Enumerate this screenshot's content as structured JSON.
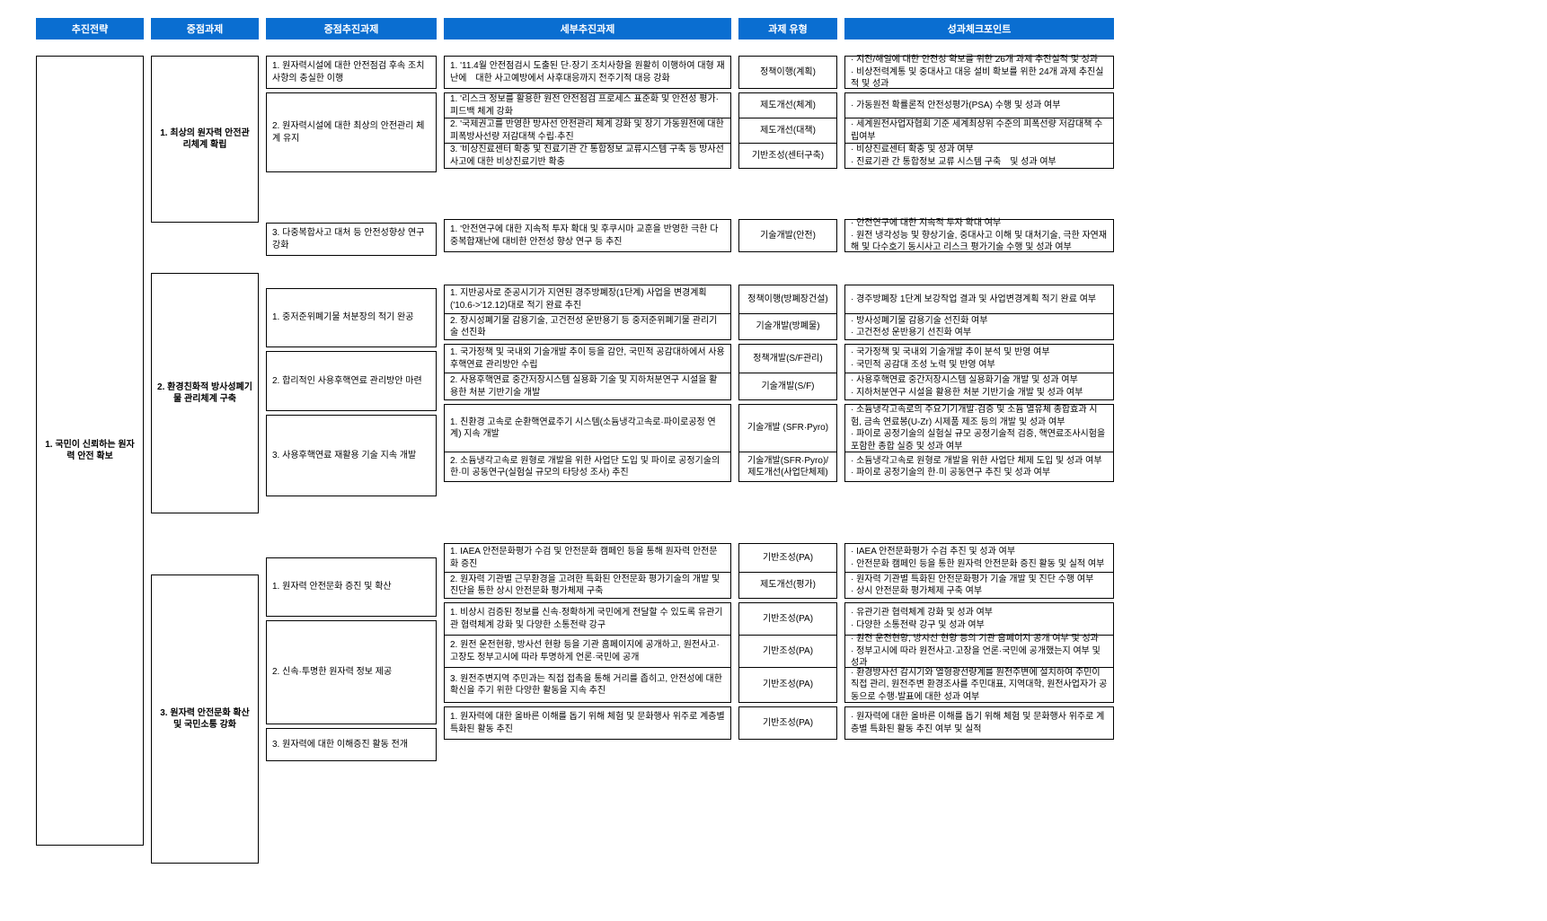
{
  "headers": {
    "strategy": "추진전략",
    "major": "중점과제",
    "focus": "중점추진과제",
    "detail": "세부추진과제",
    "type": "과제 유형",
    "check": "성과체크포인트"
  },
  "strategy": {
    "label": "1. 국민이 신뢰하는 원자력 안전 확보"
  },
  "majors": [
    {
      "label": "1. 최상의 원자력 안전관리체계 확립"
    },
    {
      "label": "2. 환경친화적 방사성폐기물 관리체계 구축"
    },
    {
      "label": "3. 원자력 안전문화 확산 및 국민소통 강화"
    }
  ],
  "focus": [
    {
      "label": "1. 원자력시설에 대한 안전점검 후속 조치사항의 충실한 이행"
    },
    {
      "label": "2. 원자력시설에 대한 최상의 안전관리 체계 유지"
    },
    {
      "label": "3. 다중복합사고 대처 등 안전성향상 연구 강화"
    },
    {
      "label": "1. 중저준위폐기물 처분장의 적기 완공"
    },
    {
      "label": "2. 합리적인 사용후핵연료 관리방안 마련"
    },
    {
      "label": "3. 사용후핵연료 재활용 기술 지속 개발"
    },
    {
      "label": "1. 원자력 안전문화 증진 및 확산"
    },
    {
      "label": "2. 신속·투명한 원자력 정보 제공"
    },
    {
      "label": "3. 원자력에 대한 이해증진 활동 전개"
    }
  ],
  "detail": [
    "1. '11.4월 안전점검시 도출된 단·장기 조치사항을 원활히 이행하여 대형 재난에　대한 사고예방에서 사후대응까지 전주기적 대응 강화",
    "1. '리스크 정보를 활용한 원전 안전점검 프로세스 표준화 및 안전성 평가·피드백 체계 강화",
    "2. '국제권고를 반영한 방사선 안전관리 체계 강화 및 장기 가동원전에 대한 피폭방사선량 저감대책 수립·추진",
    "3. '비상진료센터 확충 및 진료기관 간 통합정보 교류시스템 구축 등 방사선사고에 대한 비상진료기반 확충",
    "1. '안전연구에 대한 지속적 투자 확대 및 후쿠시마 교훈을 반영한 극한 다중복합재난에 대비한 안전성 향상 연구 등 추진",
    "1. 지반공사로 준공시기가 지연된 경주방폐장(1단계) 사업을 변경계획('10.6->'12.12)대로 적기 완료 추진",
    "2. 장시성폐기물 감용기술, 고건전성 운반용기 등 중저준위폐기물 관리기술 선진화",
    "1. 국가정책 및 국내외 기술개발 추이 등을 감안, 국민적 공감대하에서 사용후핵연료 관리방안 수립",
    "2. 사용후핵연료 중간저장시스템 실용화 기술 및 지하처분연구 시설을 활용한 처분 기반기술 개발",
    "1. 친환경 고속로 순환핵연료주기 시스템(소듐냉각고속로·파이로공정 연계) 지속 개발",
    "2. 소듐냉각고속로 원형로 개발을 위한 사업단 도입 및 파이로 공정기술의 한·미 공동연구(실험실 규모의 타당성 조사) 추진",
    "1. IAEA 안전문화평가 수검 및 안전문화 캠페인 등을 통해 원자력 안전문화 증진",
    "2. 원자력 기관별 근무환경을 고려한 특화된 안전문화 평가기술의 개발 및 진단을 통한 상시 안전문화 평가체제 구축",
    "1. 비상시 검증된 정보를 신속·정확하게 국민에게 전달할 수 있도록 유관기관 협력체계 강화 및 다양한 소통전략 강구",
    "2. 원전 운전현황, 방사선 현황 등을 기관 홈페이지에 공개하고, 원전사고·고장도 정부고시에 따라 투명하게 언론·국민에 공개",
    "3. 원전주변지역 주민과는 직접 접촉을 통해 거리를 좁히고, 안전성에 대한 확신을 주기 위한 다양한 활동을 지속 추진",
    "1. 원자력에 대한 올바른 이해를 돕기 위해 체험 및 문화행사 위주로 계층별 특화된 활동 추진"
  ],
  "type": [
    "정책이행(계획)",
    "제도개선(체계)",
    "제도개선(대책)",
    "기반조성(센터구축)",
    "기술개발(안전)",
    "정책이행(방폐장건설)",
    "기술개발(방폐물)",
    "정책개발(S/F관리)",
    "기술개발(S/F)",
    "기술개발 (SFR·Pyro)",
    "기술개발(SFR·Pyro)/제도개선(사업단체제)",
    "기반조성(PA)",
    "제도개선(평가)",
    "기반조성(PA)",
    "기반조성(PA)",
    "기반조성(PA)",
    "기반조성(PA)"
  ],
  "check": [
    [
      "지진/해일에 대한 안전성 확보를 위한 26개 과제 추진실적 및 성과",
      "비상전력계통 및 중대사고 대응 설비 확보를 위한 24개 과제 추진실적 및 성과"
    ],
    [
      "가동원전 확률론적 안전성평가(PSA) 수행 및 성과 여부"
    ],
    [
      "세계원전사업자협회 기준 세계최상위 수준의 피폭선량 저감대책 수립여부"
    ],
    [
      "비상진료센터 확충 및 성과 여부",
      "진료기관 간 통합정보 교류 시스템 구축　및 성과 여부"
    ],
    [
      "안전연구에 대한 지속적 투자 확대 여부",
      "원전 냉각성능 및 향상기술, 중대사고 이해 및 대처기술, 극한 자연재해 및 다수호기 동시사고 리스크 평가기술 수행 및 성과 여부"
    ],
    [
      "경주방폐장 1단계 보강작업 결과 및 사업변경계획 적기 완료 여부"
    ],
    [
      "방사성폐기물 감용기술 선진화 여부",
      "고건전성 운반용기 선진화 여부"
    ],
    [
      "국가정책 및 국내외 기술개발 추이 분석 및 반영 여부",
      "국민적 공감대 조성 노력 및 반영 여부"
    ],
    [
      "사용후핵연료 중간저장시스템 실용화기술 개발 및 성과 여부",
      "지하처분연구 시설을 활용한 처분 기반기술 개발 및 성과 여부"
    ],
    [
      "소듐냉각고속로의 주요기기개발·검증 및 소듐 열유체 종합효과 시험, 금속 연료봉(U-Zr) 시제품 제조 등의 개발 및 성과 여부",
      "파이로 공정기술의 실험실 규모 공정기술적 검증, 핵연료조사시험을 포함한 종합 실증 및 성과 여부"
    ],
    [
      "소듐냉각고속로 원형로 개발을 위한 사업단 체제 도입 및 성과 여부",
      "파이로 공정기술의 한·미 공동연구 추진 및 성과 여부"
    ],
    [
      "IAEA 안전문화평가 수검 추진 및 성과 여부",
      "안전문화 캠페인 등을 통한 원자력 안전문화 증진 활동 및 실적 여부"
    ],
    [
      "원자력 기관별 특화된 안전문화평가 기술 개발 및 진단 수행 여부",
      "상시 안전문화 평가체제 구축 여부"
    ],
    [
      "유관기관 협력체계 강화 및 성과 여부",
      "다양한 소통전략 강구 및 성과 여부"
    ],
    [
      "원전 운전현황, 방사선 현황 등의 기관 홈페이지 공개 여부 및 성과",
      "정부고시에 따라 원전사고·고장을 언론·국민에 공개했는지 여부 및 성과"
    ],
    [
      "환경방사선 감시기와 열형광선량계를 원전주변에 설치하여 주민이 직접 관리, 원전주변 환경조사를 주민대표, 지역대학, 원전사업자가 공동으로 수행·발표에 대한 성과 여부"
    ],
    [
      "원자력에 대한 올바른 이해를 돕기 위해 체험 및 문화행사 위주로 계층별 특화된 활동 추진 여부 및 실적"
    ]
  ],
  "heights": {
    "strategy": 880,
    "majors": [
      186,
      268,
      322
    ],
    "majors_gaps": [
      56,
      68
    ],
    "focus": [
      37,
      89,
      37,
      66,
      67,
      91,
      66,
      116,
      37
    ],
    "focus_gaps": [
      4,
      56,
      36,
      4,
      4,
      68,
      4,
      4
    ],
    "rows": [
      37,
      28,
      28,
      29,
      37,
      32,
      30,
      32,
      31,
      53,
      34,
      32,
      30,
      36,
      36,
      40,
      37
    ],
    "row_gaps": [
      4,
      0,
      0,
      56,
      36,
      0,
      4,
      0,
      4,
      0,
      68,
      0,
      4,
      0,
      0,
      4
    ]
  }
}
